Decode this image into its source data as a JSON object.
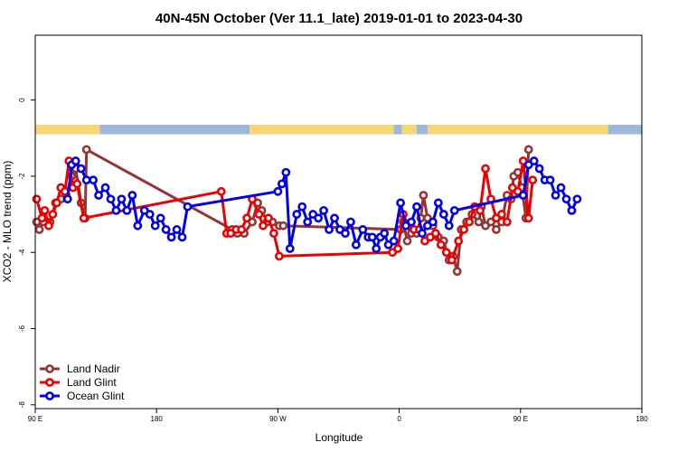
{
  "chart_data": {
    "type": "line",
    "title": "40N-45N October (Ver 11.1_late)   2019-01-01 to 2023-04-30",
    "xlabel": "Longitude",
    "ylabel": "XCO2 - MLO trend (ppm)",
    "x_unit": "degrees longitude, continuous from 90 E (90) through 180 to 90 E (450) and 180 (540)",
    "xlim": [
      90,
      540
    ],
    "ylim": [
      -8.1,
      1.7
    ],
    "x_ticks": [
      {
        "value": 90,
        "label": "90 E"
      },
      {
        "value": 180,
        "label": "180"
      },
      {
        "value": 270,
        "label": "90 W"
      },
      {
        "value": 360,
        "label": "0"
      },
      {
        "value": 450,
        "label": "90 E"
      },
      {
        "value": 540,
        "label": "180"
      }
    ],
    "y_ticks": [
      {
        "value": 0,
        "label": "0"
      },
      {
        "value": -2,
        "label": "-2"
      },
      {
        "value": -4,
        "label": "-4"
      },
      {
        "value": -6,
        "label": "-6"
      },
      {
        "value": -8,
        "label": "-8"
      }
    ],
    "grid": false,
    "legend_position": "bottom-left",
    "land_ocean_band": {
      "y_range": [
        -0.9,
        -0.65
      ],
      "ocean_color": "#9fb8d9",
      "land_color": "#f7d675",
      "land_segments": [
        [
          90,
          138
        ],
        [
          91,
          91
        ],
        [
          249,
          356
        ],
        [
          362,
          373
        ],
        [
          381,
          515
        ]
      ]
    },
    "series": [
      {
        "name": "Land Nadir",
        "color": "#993333",
        "points": [
          [
            91,
            -3.2
          ],
          [
            93,
            -3.4
          ],
          [
            96,
            -3.2
          ],
          [
            101,
            -3.2
          ],
          [
            105,
            -2.7
          ],
          [
            109,
            -2.6
          ],
          [
            113,
            -2.5
          ],
          [
            117,
            -2.0
          ],
          [
            120,
            -1.8
          ],
          [
            124,
            -2.7
          ],
          [
            127,
            -3.1
          ],
          [
            128,
            -1.3
          ],
          [
            236,
            -3.4
          ],
          [
            240,
            -3.5
          ],
          [
            245,
            -3.5
          ],
          [
            251,
            -3.2
          ],
          [
            255,
            -2.7
          ],
          [
            258,
            -2.9
          ],
          [
            262,
            -3.2
          ],
          [
            266,
            -3.2
          ],
          [
            271,
            -3.3
          ],
          [
            274,
            -3.3
          ],
          [
            361,
            -3.4
          ],
          [
            363,
            -3.2
          ],
          [
            366,
            -3.7
          ],
          [
            369,
            -3.5
          ],
          [
            373,
            -3.5
          ],
          [
            376,
            -3.1
          ],
          [
            378,
            -2.5
          ],
          [
            381,
            -3.1
          ],
          [
            385,
            -3.3
          ],
          [
            389,
            -3.6
          ],
          [
            393,
            -3.7
          ],
          [
            397,
            -4.2
          ],
          [
            400,
            -4.1
          ],
          [
            403,
            -4.5
          ],
          [
            406,
            -3.4
          ],
          [
            410,
            -3.2
          ],
          [
            414,
            -3.0
          ],
          [
            419,
            -3.2
          ],
          [
            421,
            -2.8
          ],
          [
            424,
            -3.3
          ],
          [
            428,
            -3.2
          ],
          [
            432,
            -3.4
          ],
          [
            436,
            -3.2
          ],
          [
            440,
            -2.5
          ],
          [
            443,
            -2.6
          ],
          [
            445,
            -2.0
          ],
          [
            448,
            -1.9
          ],
          [
            451,
            -2.3
          ],
          [
            454,
            -3.1
          ],
          [
            456,
            -1.3
          ]
        ]
      },
      {
        "name": "Land Glint",
        "color": "#ee0000",
        "points": [
          [
            91,
            -2.6
          ],
          [
            95,
            -3.1
          ],
          [
            97,
            -2.9
          ],
          [
            100,
            -3.3
          ],
          [
            103,
            -3.0
          ],
          [
            106,
            -2.7
          ],
          [
            109,
            -2.3
          ],
          [
            112,
            -2.4
          ],
          [
            115,
            -1.6
          ],
          [
            118,
            -2.3
          ],
          [
            121,
            -2.2
          ],
          [
            126,
            -3.1
          ],
          [
            228,
            -2.4
          ],
          [
            232,
            -3.5
          ],
          [
            235,
            -3.5
          ],
          [
            239,
            -3.4
          ],
          [
            243,
            -3.4
          ],
          [
            247,
            -3.1
          ],
          [
            251,
            -2.6
          ],
          [
            256,
            -3.0
          ],
          [
            259,
            -3.3
          ],
          [
            263,
            -3.1
          ],
          [
            267,
            -3.5
          ],
          [
            271,
            -4.1
          ],
          [
            355,
            -4.0
          ],
          [
            359,
            -3.9
          ],
          [
            363,
            -3.0
          ],
          [
            367,
            -3.3
          ],
          [
            371,
            -3.4
          ],
          [
            375,
            -3.4
          ],
          [
            379,
            -3.7
          ],
          [
            383,
            -3.6
          ],
          [
            387,
            -3.5
          ],
          [
            391,
            -3.8
          ],
          [
            395,
            -4.0
          ],
          [
            399,
            -4.2
          ],
          [
            404,
            -3.7
          ],
          [
            408,
            -3.4
          ],
          [
            412,
            -3.2
          ],
          [
            416,
            -2.8
          ],
          [
            420,
            -2.9
          ],
          [
            424,
            -1.8
          ],
          [
            428,
            -2.6
          ],
          [
            432,
            -3.1
          ],
          [
            436,
            -3.0
          ],
          [
            440,
            -3.2
          ],
          [
            444,
            -2.3
          ],
          [
            448,
            -2.4
          ],
          [
            452,
            -1.6
          ],
          [
            456,
            -3.1
          ],
          [
            459,
            -2.1
          ]
        ]
      },
      {
        "name": "Ocean Glint",
        "color": "#0000ee",
        "points": [
          [
            114,
            -2.6
          ],
          [
            117,
            -1.7
          ],
          [
            120,
            -1.6
          ],
          [
            124,
            -1.8
          ],
          [
            128,
            -2.1
          ],
          [
            133,
            -2.1
          ],
          [
            137,
            -2.5
          ],
          [
            142,
            -2.3
          ],
          [
            146,
            -2.6
          ],
          [
            150,
            -2.9
          ],
          [
            154,
            -2.6
          ],
          [
            158,
            -2.9
          ],
          [
            162,
            -2.5
          ],
          [
            166,
            -3.3
          ],
          [
            171,
            -2.9
          ],
          [
            175,
            -3.0
          ],
          [
            179,
            -3.3
          ],
          [
            183,
            -3.1
          ],
          [
            187,
            -3.4
          ],
          [
            191,
            -3.6
          ],
          [
            195,
            -3.4
          ],
          [
            199,
            -3.6
          ],
          [
            203,
            -2.8
          ],
          [
            270,
            -2.4
          ],
          [
            273,
            -2.2
          ],
          [
            276,
            -1.9
          ],
          [
            279,
            -3.9
          ],
          [
            284,
            -3.0
          ],
          [
            288,
            -2.8
          ],
          [
            292,
            -3.2
          ],
          [
            296,
            -3.0
          ],
          [
            300,
            -3.1
          ],
          [
            304,
            -2.9
          ],
          [
            308,
            -3.4
          ],
          [
            312,
            -3.1
          ],
          [
            316,
            -3.4
          ],
          [
            320,
            -3.5
          ],
          [
            324,
            -3.2
          ],
          [
            328,
            -3.8
          ],
          [
            333,
            -3.4
          ],
          [
            337,
            -3.6
          ],
          [
            340,
            -3.6
          ],
          [
            343,
            -3.9
          ],
          [
            346,
            -3.6
          ],
          [
            349,
            -3.5
          ],
          [
            352,
            -3.8
          ],
          [
            356,
            -3.7
          ],
          [
            361,
            -2.7
          ],
          [
            365,
            -3.3
          ],
          [
            369,
            -3.2
          ],
          [
            373,
            -2.8
          ],
          [
            377,
            -3.5
          ],
          [
            381,
            -3.3
          ],
          [
            385,
            -3.2
          ],
          [
            389,
            -2.7
          ],
          [
            393,
            -3.0
          ],
          [
            397,
            -3.3
          ],
          [
            401,
            -2.9
          ],
          [
            452,
            -2.5
          ],
          [
            456,
            -1.7
          ],
          [
            460,
            -1.6
          ],
          [
            464,
            -1.8
          ],
          [
            468,
            -2.1
          ],
          [
            472,
            -2.1
          ],
          [
            476,
            -2.5
          ],
          [
            480,
            -2.3
          ],
          [
            484,
            -2.6
          ],
          [
            488,
            -2.9
          ],
          [
            492,
            -2.6
          ]
        ]
      }
    ]
  }
}
